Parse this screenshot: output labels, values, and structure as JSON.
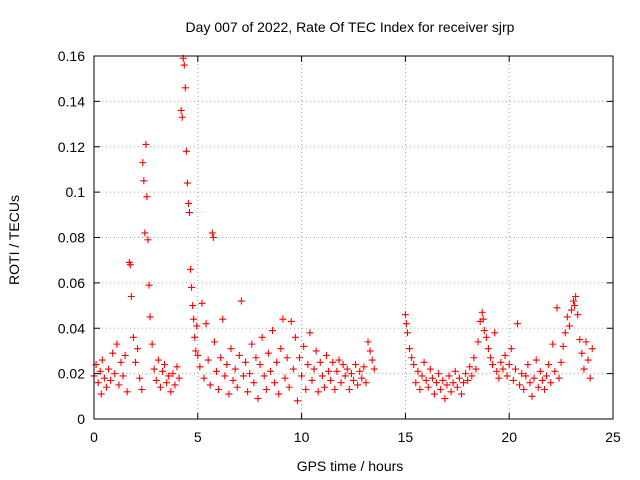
{
  "chart_data": {
    "type": "scatter",
    "title": "Day 007 of 2022, Rate Of TEC Index for receiver sjrp",
    "xlabel": "GPS time / hours",
    "ylabel": "ROTI / TECUs",
    "xlim": [
      0,
      25
    ],
    "ylim": [
      0,
      0.16
    ],
    "xticks": [
      0,
      5,
      10,
      15,
      20,
      25
    ],
    "xtick_labels": [
      "0",
      "5",
      "10",
      "15",
      "20",
      "25"
    ],
    "yticks": [
      0,
      0.02,
      0.04,
      0.06,
      0.08,
      0.1,
      0.12,
      0.14,
      0.16
    ],
    "ytick_labels": [
      "0",
      "0.02",
      "0.04",
      "0.06",
      "0.08",
      "0.1",
      "0.12",
      "0.14",
      "0.16"
    ],
    "grid": true,
    "marker": "+",
    "color": "#ff0000",
    "series": [
      {
        "name": "ROTI",
        "points": [
          [
            0.0,
            0.019
          ],
          [
            0.1,
            0.024
          ],
          [
            0.2,
            0.016
          ],
          [
            0.3,
            0.021
          ],
          [
            0.35,
            0.011
          ],
          [
            0.4,
            0.026
          ],
          [
            0.5,
            0.018
          ],
          [
            0.6,
            0.014
          ],
          [
            0.7,
            0.022
          ],
          [
            0.8,
            0.017
          ],
          [
            0.9,
            0.029
          ],
          [
            1.0,
            0.02
          ],
          [
            1.1,
            0.033
          ],
          [
            1.2,
            0.015
          ],
          [
            1.3,
            0.025
          ],
          [
            1.4,
            0.019
          ],
          [
            1.5,
            0.028
          ],
          [
            1.6,
            0.012
          ],
          [
            1.7,
            0.069
          ],
          [
            1.75,
            0.068
          ],
          [
            1.8,
            0.054
          ],
          [
            1.9,
            0.036
          ],
          [
            2.0,
            0.025
          ],
          [
            2.1,
            0.031
          ],
          [
            2.2,
            0.018
          ],
          [
            2.3,
            0.013
          ],
          [
            2.35,
            0.113
          ],
          [
            2.4,
            0.105
          ],
          [
            2.45,
            0.082
          ],
          [
            2.5,
            0.121
          ],
          [
            2.55,
            0.098
          ],
          [
            2.6,
            0.079
          ],
          [
            2.65,
            0.059
          ],
          [
            2.7,
            0.045
          ],
          [
            2.8,
            0.033
          ],
          [
            2.9,
            0.022
          ],
          [
            3.0,
            0.017
          ],
          [
            3.1,
            0.026
          ],
          [
            3.2,
            0.014
          ],
          [
            3.3,
            0.021
          ],
          [
            3.4,
            0.024
          ],
          [
            3.5,
            0.016
          ],
          [
            3.6,
            0.019
          ],
          [
            3.7,
            0.012
          ],
          [
            3.8,
            0.02
          ],
          [
            3.9,
            0.015
          ],
          [
            4.0,
            0.023
          ],
          [
            4.1,
            0.018
          ],
          [
            4.2,
            0.136
          ],
          [
            4.25,
            0.133
          ],
          [
            4.3,
            0.159
          ],
          [
            4.35,
            0.156
          ],
          [
            4.4,
            0.146
          ],
          [
            4.45,
            0.118
          ],
          [
            4.5,
            0.104
          ],
          [
            4.55,
            0.095
          ],
          [
            4.6,
            0.091
          ],
          [
            4.65,
            0.066
          ],
          [
            4.7,
            0.058
          ],
          [
            4.75,
            0.05
          ],
          [
            4.8,
            0.044
          ],
          [
            4.85,
            0.036
          ],
          [
            4.9,
            0.03
          ],
          [
            4.95,
            0.041
          ],
          [
            5.0,
            0.028
          ],
          [
            5.1,
            0.023
          ],
          [
            5.2,
            0.051
          ],
          [
            5.3,
            0.018
          ],
          [
            5.4,
            0.042
          ],
          [
            5.5,
            0.026
          ],
          [
            5.6,
            0.015
          ],
          [
            5.7,
            0.082
          ],
          [
            5.75,
            0.08
          ],
          [
            5.8,
            0.034
          ],
          [
            5.9,
            0.021
          ],
          [
            6.0,
            0.013
          ],
          [
            6.1,
            0.027
          ],
          [
            6.2,
            0.044
          ],
          [
            6.3,
            0.019
          ],
          [
            6.4,
            0.024
          ],
          [
            6.5,
            0.011
          ],
          [
            6.6,
            0.031
          ],
          [
            6.7,
            0.017
          ],
          [
            6.8,
            0.022
          ],
          [
            6.9,
            0.014
          ],
          [
            7.0,
            0.028
          ],
          [
            7.1,
            0.052
          ],
          [
            7.2,
            0.019
          ],
          [
            7.3,
            0.025
          ],
          [
            7.4,
            0.012
          ],
          [
            7.5,
            0.02
          ],
          [
            7.6,
            0.033
          ],
          [
            7.7,
            0.016
          ],
          [
            7.8,
            0.027
          ],
          [
            7.9,
            0.009
          ],
          [
            8.0,
            0.024
          ],
          [
            8.1,
            0.036
          ],
          [
            8.2,
            0.019
          ],
          [
            8.3,
            0.013
          ],
          [
            8.4,
            0.029
          ],
          [
            8.5,
            0.021
          ],
          [
            8.6,
            0.039
          ],
          [
            8.7,
            0.016
          ],
          [
            8.8,
            0.025
          ],
          [
            8.9,
            0.011
          ],
          [
            9.0,
            0.031
          ],
          [
            9.1,
            0.044
          ],
          [
            9.2,
            0.018
          ],
          [
            9.3,
            0.027
          ],
          [
            9.4,
            0.014
          ],
          [
            9.5,
            0.043
          ],
          [
            9.6,
            0.022
          ],
          [
            9.7,
            0.036
          ],
          [
            9.8,
            0.008
          ],
          [
            9.9,
            0.027
          ],
          [
            10.0,
            0.019
          ],
          [
            10.1,
            0.032
          ],
          [
            10.2,
            0.013
          ],
          [
            10.3,
            0.024
          ],
          [
            10.4,
            0.038
          ],
          [
            10.5,
            0.017
          ],
          [
            10.6,
            0.022
          ],
          [
            10.7,
            0.03
          ],
          [
            10.8,
            0.012
          ],
          [
            10.9,
            0.025
          ],
          [
            11.0,
            0.019
          ],
          [
            11.1,
            0.014
          ],
          [
            11.2,
            0.028
          ],
          [
            11.3,
            0.021
          ],
          [
            11.4,
            0.017
          ],
          [
            11.5,
            0.025
          ],
          [
            11.6,
            0.013
          ],
          [
            11.7,
            0.021
          ],
          [
            11.8,
            0.026
          ],
          [
            11.9,
            0.016
          ],
          [
            12.0,
            0.024
          ],
          [
            12.1,
            0.019
          ],
          [
            12.2,
            0.022
          ],
          [
            12.3,
            0.013
          ],
          [
            12.4,
            0.02
          ],
          [
            12.5,
            0.017
          ],
          [
            12.6,
            0.024
          ],
          [
            12.7,
            0.015
          ],
          [
            12.8,
            0.021
          ],
          [
            12.9,
            0.018
          ],
          [
            13.0,
            0.023
          ],
          [
            13.1,
            0.016
          ],
          [
            13.2,
            0.034
          ],
          [
            13.3,
            0.03
          ],
          [
            13.4,
            0.026
          ],
          [
            13.5,
            0.022
          ],
          [
            15.0,
            0.046
          ],
          [
            15.05,
            0.042
          ],
          [
            15.1,
            0.038
          ],
          [
            15.2,
            0.031
          ],
          [
            15.3,
            0.027
          ],
          [
            15.4,
            0.024
          ],
          [
            15.5,
            0.016
          ],
          [
            15.6,
            0.021
          ],
          [
            15.7,
            0.013
          ],
          [
            15.8,
            0.019
          ],
          [
            15.9,
            0.025
          ],
          [
            16.0,
            0.017
          ],
          [
            16.1,
            0.014
          ],
          [
            16.2,
            0.022
          ],
          [
            16.3,
            0.018
          ],
          [
            16.4,
            0.011
          ],
          [
            16.5,
            0.016
          ],
          [
            16.6,
            0.02
          ],
          [
            16.7,
            0.013
          ],
          [
            16.8,
            0.017
          ],
          [
            16.9,
            0.009
          ],
          [
            17.0,
            0.015
          ],
          [
            17.1,
            0.019
          ],
          [
            17.2,
            0.012
          ],
          [
            17.3,
            0.016
          ],
          [
            17.4,
            0.021
          ],
          [
            17.5,
            0.014
          ],
          [
            17.6,
            0.018
          ],
          [
            17.7,
            0.011
          ],
          [
            17.8,
            0.016
          ],
          [
            17.9,
            0.02
          ],
          [
            18.0,
            0.017
          ],
          [
            18.1,
            0.023
          ],
          [
            18.2,
            0.019
          ],
          [
            18.3,
            0.027
          ],
          [
            18.4,
            0.022
          ],
          [
            18.5,
            0.034
          ],
          [
            18.6,
            0.043
          ],
          [
            18.7,
            0.047
          ],
          [
            18.75,
            0.044
          ],
          [
            18.8,
            0.039
          ],
          [
            18.9,
            0.036
          ],
          [
            19.0,
            0.031
          ],
          [
            19.1,
            0.027
          ],
          [
            19.2,
            0.024
          ],
          [
            19.3,
            0.038
          ],
          [
            19.4,
            0.021
          ],
          [
            19.5,
            0.018
          ],
          [
            19.6,
            0.025
          ],
          [
            19.7,
            0.022
          ],
          [
            19.8,
            0.028
          ],
          [
            19.9,
            0.019
          ],
          [
            20.0,
            0.024
          ],
          [
            20.1,
            0.031
          ],
          [
            20.2,
            0.017
          ],
          [
            20.3,
            0.022
          ],
          [
            20.4,
            0.042
          ],
          [
            20.5,
            0.015
          ],
          [
            20.6,
            0.02
          ],
          [
            20.7,
            0.013
          ],
          [
            20.8,
            0.019
          ],
          [
            20.9,
            0.024
          ],
          [
            21.0,
            0.016
          ],
          [
            21.1,
            0.01
          ],
          [
            21.2,
            0.018
          ],
          [
            21.3,
            0.026
          ],
          [
            21.4,
            0.014
          ],
          [
            21.5,
            0.021
          ],
          [
            21.6,
            0.017
          ],
          [
            21.7,
            0.013
          ],
          [
            21.8,
            0.019
          ],
          [
            21.9,
            0.024
          ],
          [
            22.0,
            0.016
          ],
          [
            22.1,
            0.033
          ],
          [
            22.2,
            0.021
          ],
          [
            22.3,
            0.049
          ],
          [
            22.4,
            0.018
          ],
          [
            22.5,
            0.025
          ],
          [
            22.6,
            0.032
          ],
          [
            22.7,
            0.038
          ],
          [
            22.8,
            0.045
          ],
          [
            22.9,
            0.041
          ],
          [
            23.0,
            0.048
          ],
          [
            23.1,
            0.052
          ],
          [
            23.15,
            0.05
          ],
          [
            23.2,
            0.054
          ],
          [
            23.3,
            0.046
          ],
          [
            23.4,
            0.035
          ],
          [
            23.5,
            0.029
          ],
          [
            23.6,
            0.022
          ],
          [
            23.7,
            0.034
          ],
          [
            23.8,
            0.026
          ],
          [
            23.9,
            0.018
          ],
          [
            24.0,
            0.031
          ]
        ]
      }
    ]
  }
}
